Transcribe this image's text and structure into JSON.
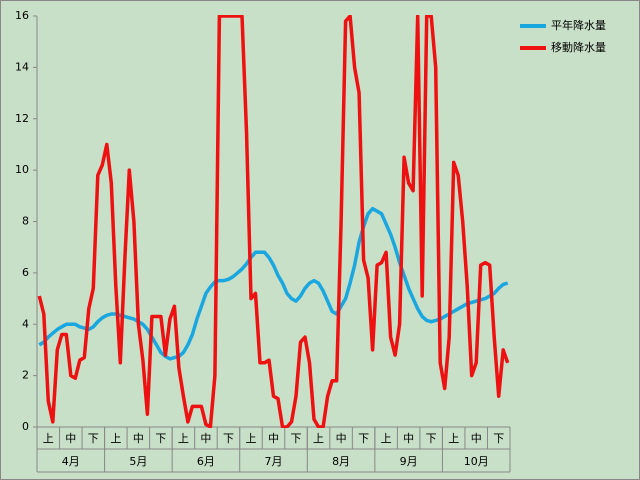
{
  "chart_data": {
    "type": "line",
    "categories": [
      null,
      null,
      "上",
      null,
      null,
      null,
      null,
      "中",
      null,
      null,
      null,
      null,
      "下",
      null,
      null,
      null,
      null,
      "上",
      null,
      null,
      null,
      null,
      "中",
      null,
      null,
      null,
      null,
      "下",
      null,
      null,
      null,
      null,
      "上",
      null,
      null,
      null,
      null,
      "中",
      null,
      null,
      null,
      null,
      "下",
      null,
      null,
      null,
      null,
      "上",
      null,
      null,
      null,
      null,
      "中",
      null,
      null,
      null,
      null,
      "下",
      null,
      null,
      null,
      null,
      "上",
      null,
      null,
      null,
      null,
      "中",
      null,
      null,
      null,
      null,
      "下",
      null,
      null,
      null,
      null,
      "上",
      null,
      null,
      null,
      null,
      "中",
      null,
      null,
      null,
      null,
      "下",
      null,
      null,
      null,
      null,
      "上",
      null,
      null,
      null,
      null,
      "中",
      null,
      null,
      null,
      null,
      "下",
      null,
      null
    ],
    "months": [
      "4月",
      "5月",
      "6月",
      "7月",
      "8月",
      "9月",
      "10月"
    ],
    "series": [
      {
        "name": "平年降水量",
        "color": "#1aa7e0",
        "values": [
          3.2,
          3.3,
          3.5,
          3.65,
          3.8,
          3.9,
          4.0,
          4.0,
          4.0,
          3.9,
          3.85,
          3.8,
          3.9,
          4.1,
          4.25,
          4.35,
          4.4,
          4.4,
          4.35,
          4.3,
          4.25,
          4.2,
          4.1,
          4.0,
          3.8,
          3.5,
          3.2,
          2.9,
          2.75,
          2.65,
          2.7,
          2.75,
          2.9,
          3.2,
          3.6,
          4.2,
          4.7,
          5.2,
          5.45,
          5.65,
          5.7,
          5.7,
          5.75,
          5.85,
          6.0,
          6.15,
          6.35,
          6.6,
          6.8,
          6.8,
          6.8,
          6.6,
          6.3,
          5.9,
          5.6,
          5.2,
          5.0,
          4.9,
          5.1,
          5.4,
          5.6,
          5.7,
          5.6,
          5.3,
          4.9,
          4.5,
          4.4,
          4.7,
          5.0,
          5.6,
          6.3,
          7.2,
          7.8,
          8.3,
          8.5,
          8.4,
          8.3,
          7.9,
          7.5,
          7.0,
          6.4,
          5.9,
          5.4,
          5.0,
          4.6,
          4.3,
          4.15,
          4.1,
          4.15,
          4.2,
          4.3,
          4.4,
          4.5,
          4.6,
          4.7,
          4.8,
          4.85,
          4.9,
          4.95,
          5.0,
          5.1,
          5.2,
          5.4,
          5.55,
          5.6
        ]
      },
      {
        "name": "移動降水量",
        "color": "#ee1111",
        "values": [
          5.1,
          4.4,
          1.0,
          0.2,
          3.0,
          3.6,
          3.6,
          2.0,
          1.9,
          2.6,
          2.7,
          4.6,
          5.4,
          9.8,
          10.2,
          11.0,
          9.5,
          5.5,
          2.5,
          6.5,
          10.0,
          8.0,
          4.0,
          2.6,
          0.5,
          4.3,
          4.3,
          4.3,
          2.8,
          4.2,
          4.7,
          2.3,
          1.2,
          0.2,
          0.8,
          0.8,
          0.8,
          0.1,
          0,
          2.0,
          16,
          16,
          16,
          16,
          16,
          16,
          11.5,
          5.0,
          5.2,
          2.5,
          2.5,
          2.6,
          1.2,
          1.1,
          0,
          0,
          0.2,
          1.2,
          3.3,
          3.5,
          2.5,
          0.3,
          0,
          0,
          1.2,
          1.8,
          1.8,
          8.0,
          15.8,
          16,
          14.0,
          13.0,
          6.5,
          5.8,
          3.0,
          6.3,
          6.4,
          6.8,
          3.5,
          2.8,
          4.0,
          10.5,
          9.5,
          9.2,
          16,
          5.1,
          16,
          16,
          14,
          2.5,
          1.5,
          3.5,
          10.3,
          9.8,
          8.0,
          5.5,
          2.0,
          2.5,
          6.3,
          6.4,
          6.3,
          3.5,
          1.2,
          3.0,
          2.5
        ]
      }
    ],
    "ylim": [
      0,
      16
    ],
    "yticks": [
      0,
      2,
      4,
      6,
      8,
      10,
      12,
      14,
      16
    ],
    "grid": false
  }
}
